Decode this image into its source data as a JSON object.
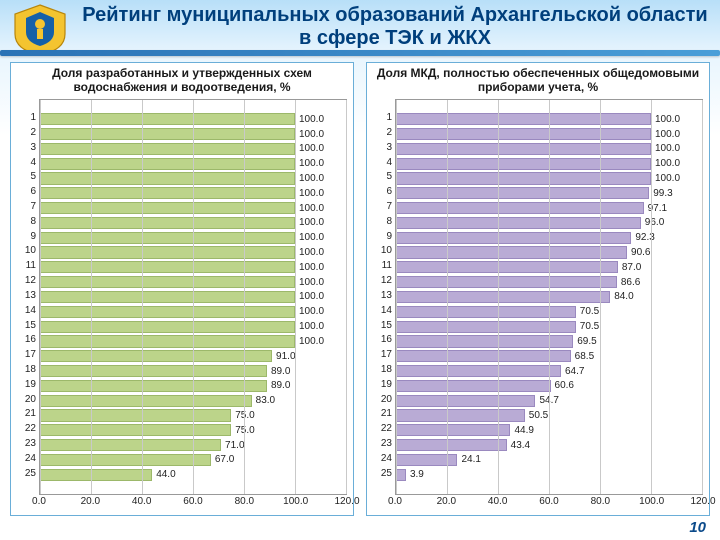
{
  "title": "Рейтинг муниципальных образований Архангельской области в сфере ТЭК и ЖКХ",
  "page_number": "10",
  "charts": [
    {
      "type": "bar-horizontal",
      "title": "Доля разработанных и утвержденных схем водоснабжения и водоотведения, %",
      "xlim": [
        0,
        120
      ],
      "xtick_step": 20,
      "xtick_labels": [
        "0.0",
        "20.0",
        "40.0",
        "60.0",
        "80.0",
        "100.0",
        "120.0"
      ],
      "bar_color": "#bcd48a",
      "bar_border": "#9cb86a",
      "grid_color": "#c9c9c9",
      "background_color": "#ffffff",
      "label_fontsize": 10,
      "title_fontsize": 12,
      "categories": [
        "1",
        "2",
        "3",
        "4",
        "5",
        "6",
        "7",
        "8",
        "9",
        "10",
        "11",
        "12",
        "13",
        "14",
        "15",
        "16",
        "17",
        "18",
        "19",
        "20",
        "21",
        "22",
        "23",
        "24",
        "25"
      ],
      "values": [
        100.0,
        100.0,
        100.0,
        100.0,
        100.0,
        100.0,
        100.0,
        100.0,
        100.0,
        100.0,
        100.0,
        100.0,
        100.0,
        100.0,
        100.0,
        100.0,
        91.0,
        89.0,
        89.0,
        83.0,
        75.0,
        75.0,
        71.0,
        67.0,
        44.0
      ],
      "value_labels": [
        "100.0",
        "100.0",
        "100.0",
        "100.0",
        "100.0",
        "100.0",
        "100.0",
        "100.0",
        "100.0",
        "100.0",
        "100.0",
        "100.0",
        "100.0",
        "100.0",
        "100.0",
        "100.0",
        "91.0",
        "89.0",
        "89.0",
        "83.0",
        "75.0",
        "75.0",
        "71.0",
        "67.0",
        "44.0"
      ]
    },
    {
      "type": "bar-horizontal",
      "title": "Доля МКД, полностью обеспеченных общедомовыми приборами учета, %",
      "xlim": [
        0,
        120
      ],
      "xtick_step": 20,
      "xtick_labels": [
        "0.0",
        "20.0",
        "40.0",
        "60.0",
        "80.0",
        "100.0",
        "120.0"
      ],
      "bar_color": "#b9abd5",
      "bar_border": "#9a89bf",
      "grid_color": "#c9c9c9",
      "background_color": "#ffffff",
      "label_fontsize": 10,
      "title_fontsize": 12,
      "categories": [
        "1",
        "2",
        "3",
        "4",
        "5",
        "6",
        "7",
        "8",
        "9",
        "10",
        "11",
        "12",
        "13",
        "14",
        "15",
        "16",
        "17",
        "18",
        "19",
        "20",
        "21",
        "22",
        "23",
        "24",
        "25"
      ],
      "values": [
        100.0,
        100.0,
        100.0,
        100.0,
        100.0,
        99.3,
        97.1,
        96.0,
        92.3,
        90.6,
        87.0,
        86.6,
        84.0,
        70.5,
        70.5,
        69.5,
        68.5,
        64.7,
        60.6,
        54.7,
        50.5,
        44.9,
        43.4,
        24.1,
        3.9
      ],
      "value_labels": [
        "100.0",
        "100.0",
        "100.0",
        "100.0",
        "100.0",
        "99.3",
        "97.1",
        "96.0",
        "92.3",
        "90.6",
        "87.0",
        "86.6",
        "84.0",
        "70.5",
        "70.5",
        "69.5",
        "68.5",
        "64.7",
        "60.6",
        "54.7",
        "50.5",
        "44.9",
        "43.4",
        "24.1",
        "3.9"
      ]
    }
  ]
}
